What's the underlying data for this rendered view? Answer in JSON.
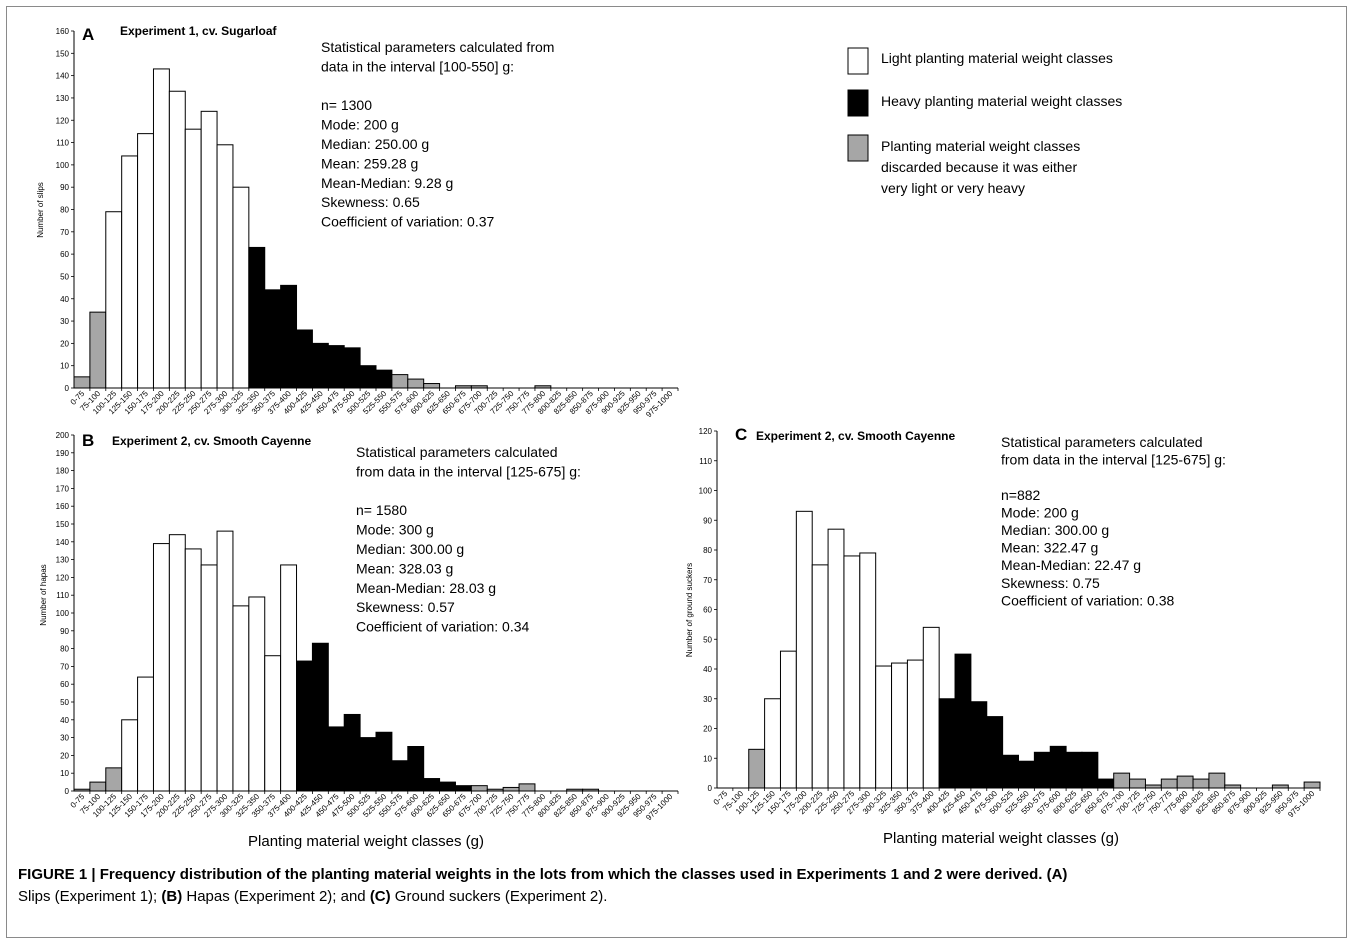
{
  "colors": {
    "light": "#ffffff",
    "heavy": "#000000",
    "discarded": "#a6a6a6",
    "axis": "#000000"
  },
  "legend": {
    "light": "Light planting material weight classes",
    "heavy": "Heavy planting material weight classes",
    "discarded": [
      "Planting material weight classes",
      "discarded because it was either",
      "very light or very heavy"
    ]
  },
  "caption": {
    "figure_label": "FIGURE 1 | Frequency distribution of the planting material weights in the lots from which the classes used in Experiments 1 and 2 were derived. (A)",
    "line2_parts": [
      "Slips (Experiment 1); ",
      "(B)",
      " Hapas (Experiment 2); and ",
      "(C)",
      " Ground suckers (Experiment 2)."
    ]
  },
  "chart_data": [
    {
      "type": "bar",
      "panel": "A",
      "title": "Experiment 1, cv. Sugarloaf",
      "ylabel": "Number of slips",
      "xlabel": "",
      "ylim": [
        0,
        160
      ],
      "ytick_step": 10,
      "categories": [
        "0-75",
        "75-100",
        "100-125",
        "125-150",
        "150-175",
        "175-200",
        "200-225",
        "225-250",
        "250-275",
        "275-300",
        "300-325",
        "325-350",
        "350-375",
        "375-400",
        "400-425",
        "425-450",
        "450-475",
        "475-500",
        "500-525",
        "525-550",
        "550-575",
        "575-600",
        "600-625",
        "625-650",
        "650-675",
        "675-700",
        "700-725",
        "725-750",
        "750-775",
        "775-800",
        "800-825",
        "825-850",
        "850-875",
        "875-900",
        "900-925",
        "925-950",
        "950-975",
        "975-1000"
      ],
      "values": [
        5,
        34,
        79,
        104,
        114,
        143,
        133,
        116,
        124,
        109,
        90,
        63,
        44,
        46,
        26,
        20,
        19,
        18,
        10,
        8,
        6,
        4,
        2,
        0,
        1,
        1,
        0,
        0,
        0,
        1,
        0,
        0,
        0,
        0,
        0,
        0,
        0,
        0
      ],
      "classes": [
        "d",
        "d",
        "l",
        "l",
        "l",
        "l",
        "l",
        "l",
        "l",
        "l",
        "l",
        "h",
        "h",
        "h",
        "h",
        "h",
        "h",
        "h",
        "h",
        "h",
        "d",
        "d",
        "d",
        "d",
        "d",
        "d",
        "d",
        "d",
        "d",
        "d",
        "d",
        "d",
        "d",
        "d",
        "d",
        "d",
        "d",
        "d"
      ],
      "stats": [
        "Statistical parameters calculated from",
        "data in the interval [100-550] g:",
        "",
        "n= 1300",
        "Mode: 200 g",
        "Median: 250.00 g",
        "Mean: 259.28 g",
        "Mean-Median: 9.28 g",
        "Skewness: 0.65",
        "Coefficient of variation: 0.37"
      ]
    },
    {
      "type": "bar",
      "panel": "B",
      "title": "Experiment 2, cv. Smooth Cayenne",
      "ylabel": "Number of hapas",
      "xlabel": "Planting material weight classes (g)",
      "ylim": [
        0,
        200
      ],
      "ytick_step": 10,
      "categories": [
        "0-75",
        "75-100",
        "100-125",
        "125-150",
        "150-175",
        "175-200",
        "200-225",
        "225-250",
        "250-275",
        "275-300",
        "300-325",
        "325-350",
        "350-375",
        "375-400",
        "400-425",
        "425-450",
        "450-475",
        "475-500",
        "500-525",
        "525-550",
        "550-575",
        "575-600",
        "600-625",
        "625-650",
        "650-675",
        "675-700",
        "700-725",
        "725-750",
        "750-775",
        "775-800",
        "800-825",
        "825-850",
        "850-875",
        "875-900",
        "900-925",
        "925-950",
        "950-975",
        "975-1000"
      ],
      "values": [
        1,
        5,
        13,
        40,
        64,
        139,
        144,
        136,
        127,
        146,
        104,
        109,
        76,
        127,
        73,
        83,
        36,
        43,
        30,
        33,
        17,
        25,
        7,
        5,
        3,
        3,
        1,
        2,
        4,
        0,
        0,
        1,
        1,
        0,
        0,
        0,
        0,
        0
      ],
      "classes": [
        "d",
        "d",
        "d",
        "l",
        "l",
        "l",
        "l",
        "l",
        "l",
        "l",
        "l",
        "l",
        "l",
        "l",
        "h",
        "h",
        "h",
        "h",
        "h",
        "h",
        "h",
        "h",
        "h",
        "h",
        "h",
        "d",
        "d",
        "d",
        "d",
        "d",
        "d",
        "d",
        "d",
        "d",
        "d",
        "d",
        "d",
        "d"
      ],
      "stats": [
        "Statistical parameters calculated",
        "from data in the interval [125-675] g:",
        "",
        "n= 1580",
        "Mode: 300 g",
        "Median: 300.00 g",
        "Mean: 328.03 g",
        "Mean-Median: 28.03 g",
        "Skewness: 0.57",
        "Coefficient of variation: 0.34"
      ]
    },
    {
      "type": "bar",
      "panel": "C",
      "title": "Experiment 2, cv. Smooth Cayenne",
      "ylabel": "Number of ground suckers",
      "xlabel": "Planting material weight classes (g)",
      "ylim": [
        0,
        120
      ],
      "ytick_step": 10,
      "categories": [
        "0-75",
        "75-100",
        "100-125",
        "125-150",
        "150-175",
        "175-200",
        "200-225",
        "225-250",
        "250-275",
        "275-300",
        "300-325",
        "325-350",
        "350-375",
        "375-400",
        "400-425",
        "425-450",
        "450-475",
        "475-500",
        "500-525",
        "525-550",
        "550-575",
        "575-600",
        "600-625",
        "625-650",
        "650-675",
        "675-700",
        "700-725",
        "725-750",
        "750-775",
        "775-800",
        "800-825",
        "825-850",
        "850-875",
        "875-900",
        "900-925",
        "925-950",
        "950-975",
        "975-1000"
      ],
      "values": [
        0,
        0,
        13,
        30,
        46,
        93,
        75,
        87,
        78,
        79,
        41,
        42,
        43,
        54,
        30,
        45,
        29,
        24,
        11,
        9,
        12,
        14,
        12,
        12,
        3,
        5,
        3,
        1,
        3,
        4,
        3,
        5,
        1,
        0,
        0,
        1,
        0,
        2
      ],
      "classes": [
        "d",
        "d",
        "d",
        "l",
        "l",
        "l",
        "l",
        "l",
        "l",
        "l",
        "l",
        "l",
        "l",
        "l",
        "h",
        "h",
        "h",
        "h",
        "h",
        "h",
        "h",
        "h",
        "h",
        "h",
        "h",
        "d",
        "d",
        "d",
        "d",
        "d",
        "d",
        "d",
        "d",
        "d",
        "d",
        "d",
        "d",
        "d"
      ],
      "stats": [
        "Statistical parameters calculated",
        "from data in the interval [125-675] g:",
        "",
        "n=882",
        "Mode: 200 g",
        "Median: 300.00 g",
        "Mean: 322.47 g",
        "Mean-Median: 22.47 g",
        "Skewness: 0.75",
        "Coefficient of variation: 0.38"
      ]
    }
  ]
}
